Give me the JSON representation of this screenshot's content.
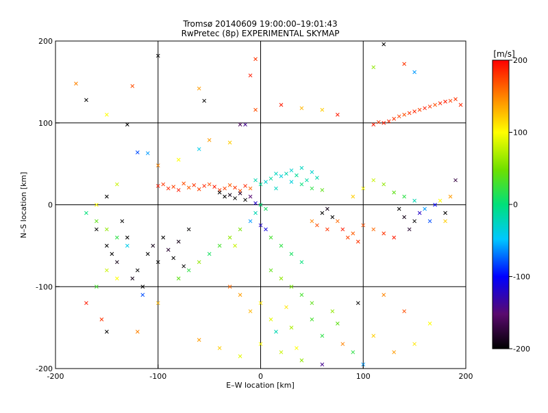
{
  "chart_data": {
    "type": "scatter",
    "title": "Tromsø 20140609 19:00:00–19:01:43",
    "subtitle": "RwPretec (8p) EXPERIMENTAL SKYMAP",
    "xlabel": "E–W location [km]",
    "ylabel": "N–S location [km]",
    "xlim": [
      -200,
      200
    ],
    "ylim": [
      -200,
      200
    ],
    "xticks": [
      -200,
      -100,
      0,
      100,
      200
    ],
    "yticks": [
      -200,
      -100,
      0,
      100,
      200
    ],
    "grid": true,
    "colorbar": {
      "label": "[m/s]",
      "min": -200,
      "max": 200,
      "ticks": [
        200,
        100,
        0,
        -100,
        -200
      ],
      "placement": "right"
    },
    "series": [
      {
        "values": [
          [
            -180,
            148,
            150
          ],
          [
            -150,
            110,
            100
          ],
          [
            -125,
            145,
            170
          ],
          [
            -100,
            182,
            -200
          ],
          [
            -55,
            127,
            -200
          ],
          [
            -130,
            98,
            -200
          ],
          [
            -120,
            64,
            -80
          ],
          [
            -170,
            128,
            -200
          ],
          [
            -100,
            23,
            190
          ],
          [
            -95,
            25,
            180
          ],
          [
            -90,
            20,
            185
          ],
          [
            -85,
            22,
            175
          ],
          [
            -80,
            18,
            190
          ],
          [
            -75,
            26,
            170
          ],
          [
            -70,
            21,
            165
          ],
          [
            -65,
            24,
            180
          ],
          [
            -60,
            19,
            175
          ],
          [
            -55,
            23,
            185
          ],
          [
            -50,
            25,
            170
          ],
          [
            -45,
            22,
            190
          ],
          [
            -40,
            18,
            180
          ],
          [
            -35,
            20,
            175
          ],
          [
            -30,
            24,
            165
          ],
          [
            -25,
            21,
            180
          ],
          [
            -20,
            17,
            170
          ],
          [
            -15,
            23,
            185
          ],
          [
            -10,
            20,
            160
          ],
          [
            -40,
            15,
            -200
          ],
          [
            -35,
            10,
            -200
          ],
          [
            -30,
            12,
            -190
          ],
          [
            -25,
            8,
            -200
          ],
          [
            -20,
            14,
            -180
          ],
          [
            -15,
            6,
            -200
          ],
          [
            -10,
            10,
            -150
          ],
          [
            -5,
            2,
            -120
          ],
          [
            -5,
            30,
            -20
          ],
          [
            0,
            25,
            -10
          ],
          [
            5,
            28,
            -30
          ],
          [
            10,
            32,
            -15
          ],
          [
            15,
            20,
            -25
          ],
          [
            20,
            35,
            -35
          ],
          [
            25,
            38,
            -20
          ],
          [
            30,
            42,
            -30
          ],
          [
            35,
            36,
            -10
          ],
          [
            40,
            45,
            -25
          ],
          [
            45,
            30,
            -15
          ],
          [
            50,
            40,
            -30
          ],
          [
            55,
            33,
            -20
          ],
          [
            30,
            28,
            -35
          ],
          [
            15,
            38,
            -25
          ],
          [
            40,
            25,
            0
          ],
          [
            50,
            20,
            20
          ],
          [
            60,
            18,
            40
          ],
          [
            0,
            0,
            0
          ],
          [
            5,
            -5,
            10
          ],
          [
            -5,
            -10,
            -20
          ],
          [
            -10,
            -20,
            -60
          ],
          [
            0,
            -25,
            -120
          ],
          [
            5,
            -30,
            -110
          ],
          [
            -20,
            -30,
            50
          ],
          [
            -30,
            -40,
            60
          ],
          [
            -25,
            -50,
            80
          ],
          [
            10,
            -40,
            30
          ],
          [
            20,
            -50,
            20
          ],
          [
            30,
            -60,
            10
          ],
          [
            40,
            -70,
            0
          ],
          [
            10,
            -80,
            40
          ],
          [
            20,
            -90,
            60
          ],
          [
            30,
            -100,
            50
          ],
          [
            40,
            -110,
            30
          ],
          [
            50,
            -120,
            40
          ],
          [
            0,
            -120,
            110
          ],
          [
            -10,
            -130,
            130
          ],
          [
            -20,
            -110,
            140
          ],
          [
            -30,
            -100,
            160
          ],
          [
            10,
            -140,
            90
          ],
          [
            30,
            -150,
            70
          ],
          [
            50,
            -140,
            30
          ],
          [
            60,
            -160,
            20
          ],
          [
            70,
            -130,
            60
          ],
          [
            75,
            -145,
            40
          ],
          [
            -110,
            -60,
            -200
          ],
          [
            -105,
            -50,
            -190
          ],
          [
            -100,
            -70,
            -200
          ],
          [
            -95,
            -40,
            -200
          ],
          [
            -90,
            -55,
            -180
          ],
          [
            -85,
            -65,
            -200
          ],
          [
            -80,
            -45,
            -190
          ],
          [
            -75,
            -75,
            -200
          ],
          [
            -70,
            -30,
            -200
          ],
          [
            -120,
            -80,
            -200
          ],
          [
            -125,
            -90,
            -190
          ],
          [
            -115,
            -100,
            -200
          ],
          [
            -130,
            -40,
            -200
          ],
          [
            -140,
            -70,
            -190
          ],
          [
            -145,
            -60,
            -200
          ],
          [
            -150,
            -50,
            -200
          ],
          [
            -160,
            -30,
            -200
          ],
          [
            -135,
            -20,
            -200
          ],
          [
            -170,
            -10,
            0
          ],
          [
            -160,
            -20,
            40
          ],
          [
            -150,
            -30,
            60
          ],
          [
            -140,
            -40,
            20
          ],
          [
            -130,
            -50,
            -40
          ],
          [
            -150,
            -80,
            80
          ],
          [
            -140,
            -90,
            100
          ],
          [
            -160,
            -100,
            30
          ],
          [
            -170,
            -120,
            190
          ],
          [
            -155,
            -140,
            180
          ],
          [
            -150,
            -155,
            -200
          ],
          [
            -120,
            -155,
            150
          ],
          [
            -115,
            -110,
            -80
          ],
          [
            -100,
            -120,
            130
          ],
          [
            -80,
            -90,
            40
          ],
          [
            -70,
            -80,
            20
          ],
          [
            -60,
            -70,
            60
          ],
          [
            -50,
            -60,
            10
          ],
          [
            -40,
            -50,
            30
          ],
          [
            60,
            -10,
            -200
          ],
          [
            65,
            -5,
            -190
          ],
          [
            70,
            -15,
            -200
          ],
          [
            50,
            -20,
            150
          ],
          [
            55,
            -25,
            170
          ],
          [
            65,
            -30,
            180
          ],
          [
            75,
            -20,
            160
          ],
          [
            80,
            -30,
            190
          ],
          [
            85,
            -40,
            175
          ],
          [
            90,
            -35,
            165
          ],
          [
            95,
            -45,
            180
          ],
          [
            100,
            -25,
            170
          ],
          [
            110,
            -30,
            160
          ],
          [
            120,
            -35,
            180
          ],
          [
            130,
            -40,
            190
          ],
          [
            90,
            10,
            120
          ],
          [
            100,
            20,
            100
          ],
          [
            110,
            30,
            80
          ],
          [
            120,
            25,
            60
          ],
          [
            130,
            15,
            40
          ],
          [
            140,
            10,
            20
          ],
          [
            150,
            5,
            -20
          ],
          [
            160,
            -5,
            -60
          ],
          [
            170,
            0,
            -100
          ],
          [
            180,
            -10,
            -200
          ],
          [
            135,
            -5,
            -200
          ],
          [
            140,
            -15,
            -190
          ],
          [
            150,
            -20,
            -200
          ],
          [
            145,
            -30,
            -180
          ],
          [
            155,
            -10,
            -120
          ],
          [
            165,
            -20,
            -80
          ],
          [
            175,
            5,
            100
          ],
          [
            185,
            10,
            140
          ],
          [
            190,
            30,
            -170
          ],
          [
            180,
            -20,
            120
          ],
          [
            120,
            100,
            190
          ],
          [
            125,
            102,
            185
          ],
          [
            130,
            105,
            180
          ],
          [
            135,
            108,
            175
          ],
          [
            140,
            110,
            170
          ],
          [
            145,
            112,
            180
          ],
          [
            150,
            114,
            185
          ],
          [
            155,
            116,
            175
          ],
          [
            160,
            118,
            190
          ],
          [
            165,
            120,
            180
          ],
          [
            170,
            122,
            170
          ],
          [
            175,
            124,
            185
          ],
          [
            180,
            126,
            190
          ],
          [
            185,
            127,
            175
          ],
          [
            190,
            129,
            180
          ],
          [
            195,
            122,
            185
          ],
          [
            110,
            98,
            190
          ],
          [
            115,
            101,
            180
          ],
          [
            120,
            196,
            -200
          ],
          [
            140,
            172,
            180
          ],
          [
            150,
            162,
            -60
          ],
          [
            110,
            168,
            60
          ],
          [
            -10,
            158,
            190
          ],
          [
            -5,
            178,
            180
          ],
          [
            -60,
            142,
            140
          ],
          [
            -5,
            116,
            170
          ],
          [
            20,
            122,
            190
          ],
          [
            40,
            118,
            130
          ],
          [
            60,
            116,
            120
          ],
          [
            75,
            110,
            190
          ],
          [
            -15,
            98,
            -140
          ],
          [
            -20,
            98,
            -160
          ],
          [
            -50,
            79,
            140
          ],
          [
            -30,
            76,
            120
          ],
          [
            -60,
            68,
            -40
          ],
          [
            -80,
            55,
            100
          ],
          [
            -110,
            63,
            -60
          ],
          [
            -100,
            48,
            150
          ],
          [
            -140,
            25,
            80
          ],
          [
            -150,
            10,
            -200
          ],
          [
            -160,
            0,
            100
          ],
          [
            100,
            -195,
            -60
          ],
          [
            90,
            -180,
            20
          ],
          [
            80,
            -170,
            150
          ],
          [
            60,
            -195,
            -140
          ],
          [
            40,
            -190,
            60
          ],
          [
            20,
            -180,
            80
          ],
          [
            0,
            -170,
            100
          ],
          [
            -20,
            -185,
            90
          ],
          [
            -40,
            -175,
            120
          ],
          [
            -60,
            -165,
            140
          ],
          [
            95,
            -120,
            -200
          ],
          [
            110,
            -160,
            120
          ],
          [
            130,
            -180,
            140
          ],
          [
            150,
            -170,
            110
          ],
          [
            165,
            -145,
            100
          ],
          [
            140,
            -130,
            170
          ],
          [
            120,
            -110,
            150
          ],
          [
            25,
            -125,
            110
          ],
          [
            15,
            -155,
            -20
          ],
          [
            35,
            -175,
            100
          ]
        ]
      }
    ]
  }
}
